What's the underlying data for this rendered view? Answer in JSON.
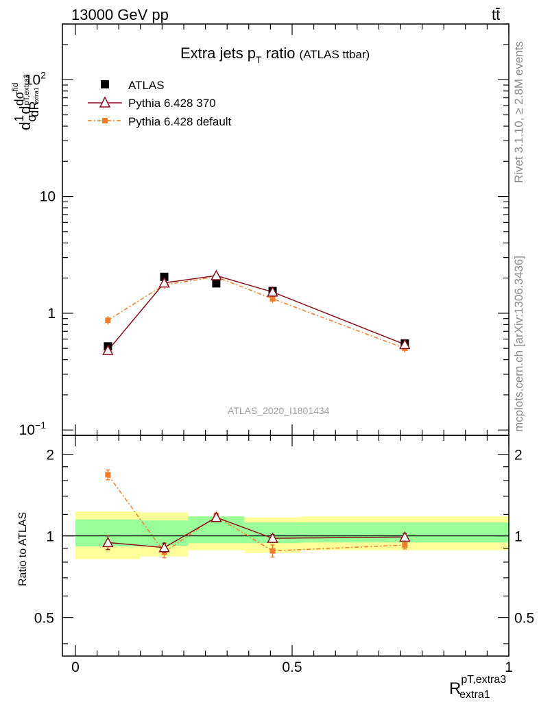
{
  "header": {
    "energy_label": "13000 GeV pp",
    "process_label": "tt̄"
  },
  "side_labels": {
    "rivet": "Rivet 3.1.10, ≥ 2.8M events",
    "mcplots": "mcplots.cern.ch [arXiv:1306.3436]"
  },
  "analysis_tag": "ATLAS_2020_I1801434",
  "colors": {
    "data": "#000000",
    "pythia370": "#8b0f1a",
    "pythia_default": "#f07c2c",
    "band_inner": "#99ff99",
    "band_outer": "#ffff99"
  },
  "chart_data": [
    {
      "type": "scatter",
      "panel": "main",
      "title_main": "Extra jets p",
      "title_sub": "T",
      "title_rest": " ratio",
      "title_note": "(ATLAS ttbar)",
      "ylabel_parts": [
        "d",
        "1",
        "σ",
        "d",
        "dσ",
        "fid",
        "dR",
        "pT,extra3",
        "extra1"
      ],
      "yscale": "log",
      "ylim": [
        0.09,
        300
      ],
      "xlim": [
        -0.03,
        1.0
      ],
      "yticks": [
        {
          "value": 0.1,
          "label": "10",
          "exp": "−1"
        },
        {
          "value": 1,
          "label": "1",
          "exp": ""
        },
        {
          "value": 10,
          "label": "10",
          "exp": ""
        },
        {
          "value": 100,
          "label": "10",
          "exp": "2"
        }
      ],
      "legend": {
        "position": "top-left",
        "entries": [
          "ATLAS",
          "Pythia 6.428 370",
          "Pythia 6.428 default"
        ]
      },
      "series": [
        {
          "name": "ATLAS",
          "style": "square",
          "x": [
            0.075,
            0.205,
            0.325,
            0.455,
            0.76
          ],
          "y": [
            0.52,
            2.05,
            1.8,
            1.55,
            0.55
          ]
        },
        {
          "name": "Pythia 6.428 370",
          "style": "triangle-line",
          "x": [
            0.075,
            0.205,
            0.325,
            0.455,
            0.76
          ],
          "y": [
            0.48,
            1.82,
            2.1,
            1.52,
            0.54
          ]
        },
        {
          "name": "Pythia 6.428 default",
          "style": "dashdot-square",
          "x": [
            0.075,
            0.205,
            0.325,
            0.455,
            0.76
          ],
          "y": [
            0.87,
            1.75,
            2.05,
            1.33,
            0.5
          ]
        }
      ]
    },
    {
      "type": "scatter",
      "panel": "ratio",
      "ylabel": "Ratio to ATLAS",
      "xlabel_main": "R",
      "xlabel_sup": "pT,extra3",
      "xlabel_sub": "extra1",
      "xlim": [
        -0.03,
        1.0
      ],
      "ylim": [
        0.36,
        2.35
      ],
      "yticks": [
        0.5,
        1,
        2
      ],
      "xticks": [
        {
          "value": 0,
          "label": "0"
        },
        {
          "value": 0.5,
          "label": "0.5"
        },
        {
          "value": 1,
          "label": "1"
        }
      ],
      "bands": [
        {
          "x0": 0.0,
          "x1": 0.15,
          "inner": [
            0.915,
            1.15
          ],
          "outer": [
            0.82,
            1.23
          ]
        },
        {
          "x0": 0.15,
          "x1": 0.26,
          "inner": [
            0.92,
            1.14
          ],
          "outer": [
            0.84,
            1.22
          ]
        },
        {
          "x0": 0.26,
          "x1": 0.39,
          "inner": [
            0.94,
            1.18
          ],
          "outer": [
            0.885,
            1.18
          ]
        },
        {
          "x0": 0.39,
          "x1": 0.52,
          "inner": [
            0.94,
            1.12
          ],
          "outer": [
            0.865,
            1.17
          ]
        },
        {
          "x0": 0.52,
          "x1": 1.0,
          "inner": [
            0.945,
            1.12
          ],
          "outer": [
            0.885,
            1.18
          ]
        }
      ],
      "series": [
        {
          "name": "Pythia 6.428 370",
          "style": "triangle-line",
          "x": [
            0.075,
            0.205,
            0.325,
            0.455,
            0.76
          ],
          "y": [
            0.945,
            0.905,
            1.17,
            0.98,
            0.99
          ],
          "err": [
            0.055,
            0.035,
            0.035,
            0.03,
            0.03
          ]
        },
        {
          "name": "Pythia 6.428 default",
          "style": "dashdot-square",
          "x": [
            0.075,
            0.205,
            0.325,
            0.455,
            0.76
          ],
          "y": [
            1.68,
            0.87,
            1.18,
            0.88,
            0.925
          ],
          "err": [
            0.07,
            0.04,
            0.035,
            0.045,
            0.03
          ]
        }
      ]
    }
  ]
}
